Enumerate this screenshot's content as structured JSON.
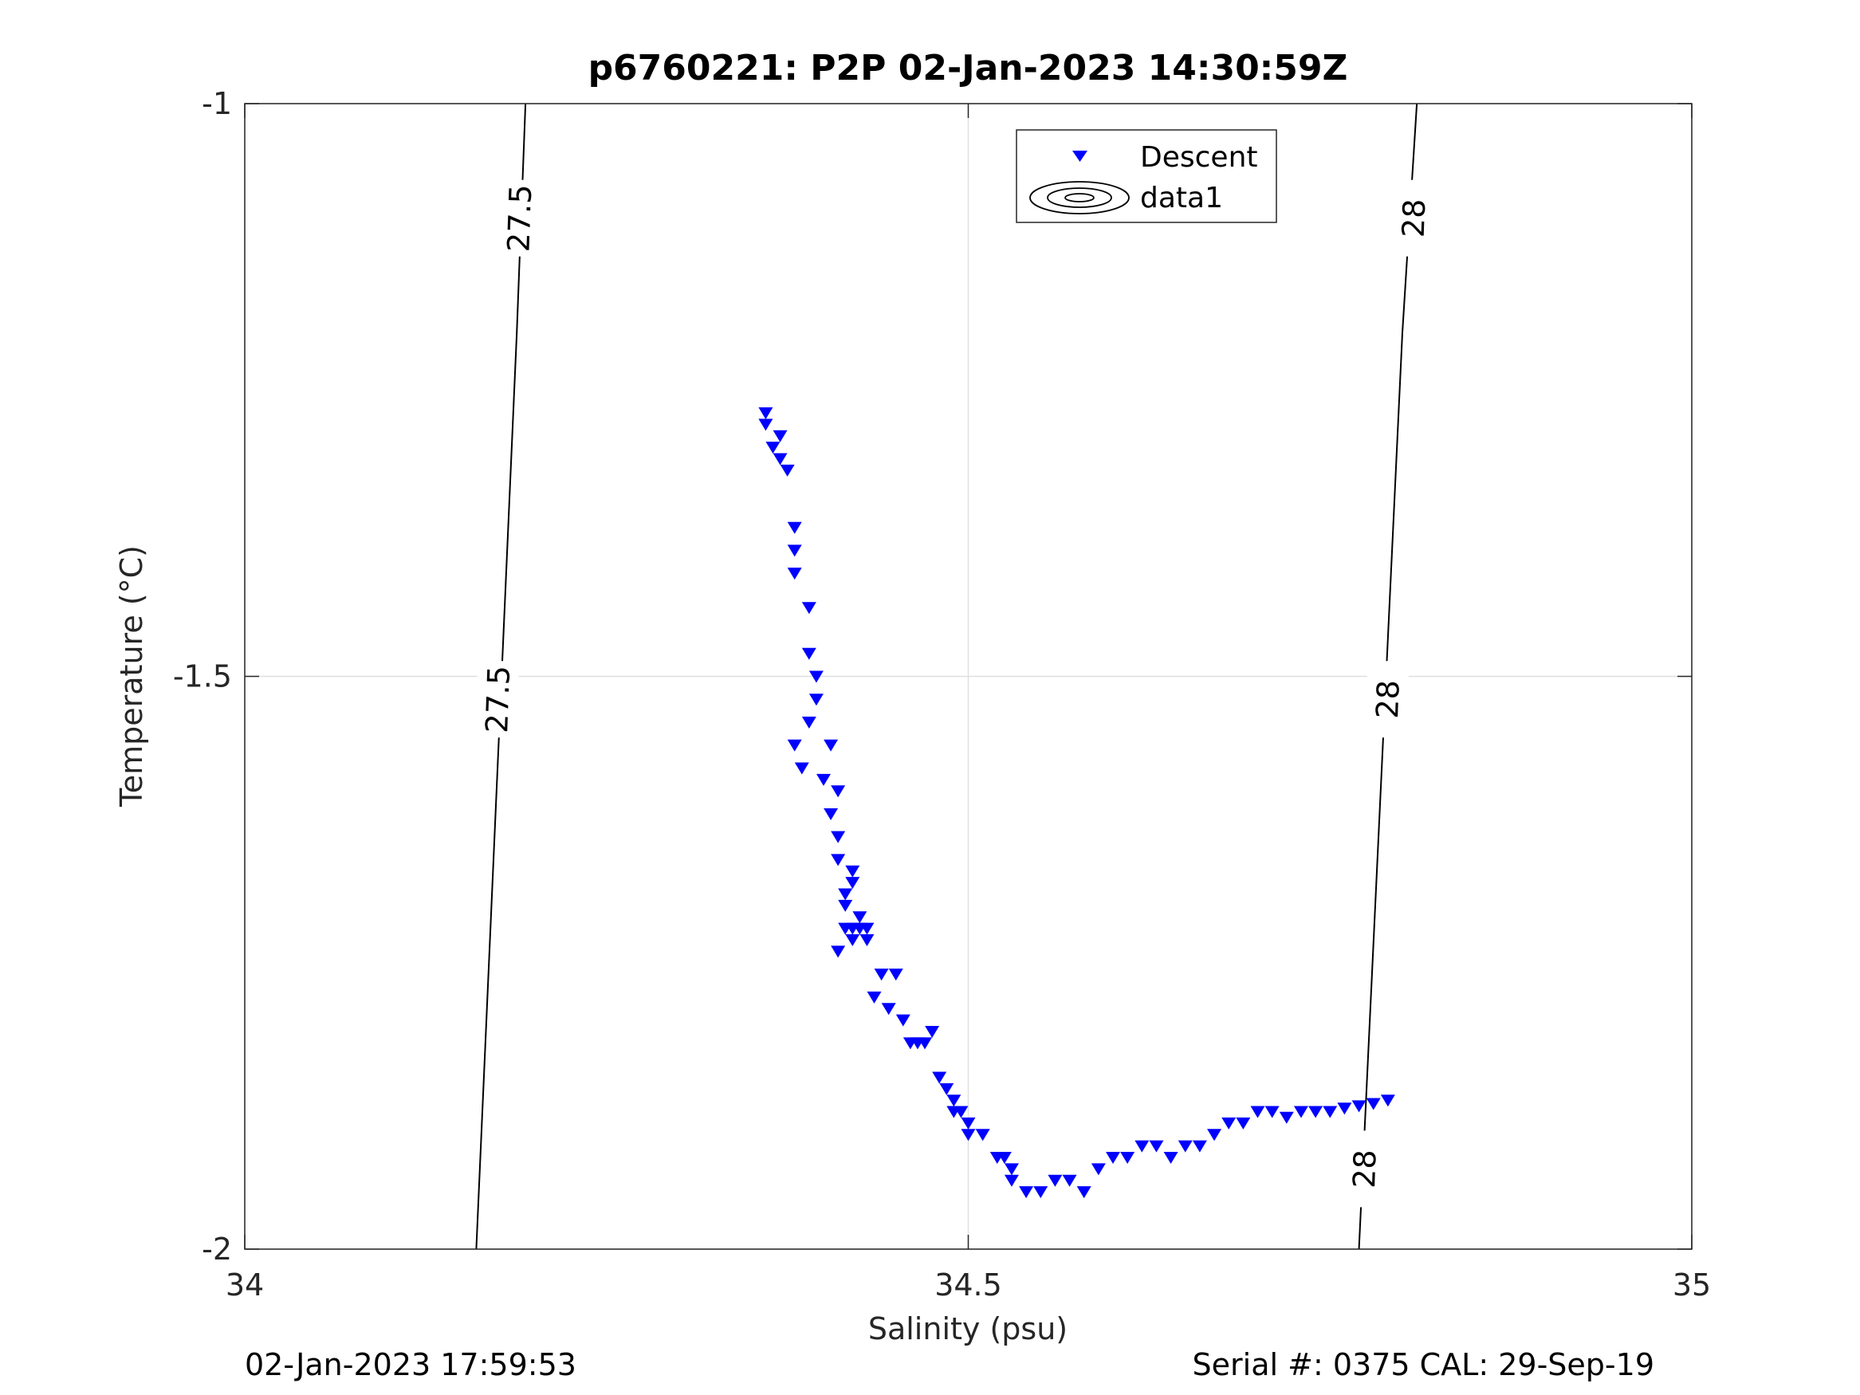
{
  "footer": {
    "left": "02-Jan-2023 17:59:53",
    "right": "Serial #: 0375  CAL: 29-Sep-19"
  },
  "chart_data": {
    "type": "scatter",
    "title": "p6760221: P2P 02-Jan-2023 14:30:59Z",
    "xlabel": "Salinity (psu)",
    "ylabel": "Temperature (°C)",
    "xlim": [
      34,
      35
    ],
    "ylim": [
      -2,
      -1
    ],
    "xticks": [
      34,
      34.5,
      35
    ],
    "xtick_labels": [
      "34",
      "34.5",
      "35"
    ],
    "yticks": [
      -1,
      -1.5,
      -2
    ],
    "ytick_labels": [
      "-1",
      "-1.5",
      "-2"
    ],
    "grid": true,
    "legend": {
      "location": "top",
      "entries": [
        "Descent",
        "data1"
      ]
    },
    "colors": {
      "descent": "#0000ff",
      "contour": "#000000",
      "grid": "#dfdfdf"
    },
    "series": [
      {
        "name": "Descent",
        "marker": "triangle-down",
        "x": [
          34.36,
          34.36,
          34.365,
          34.37,
          34.375,
          34.37,
          34.38,
          34.38,
          34.38,
          34.39,
          34.39,
          34.395,
          34.395,
          34.39,
          34.38,
          34.385,
          34.4,
          34.405,
          34.41,
          34.405,
          34.41,
          34.41,
          34.42,
          34.415,
          34.42,
          34.42,
          34.41,
          34.415,
          34.415,
          34.42,
          34.425,
          34.43,
          34.425,
          34.43,
          34.44,
          34.435,
          34.445,
          34.45,
          34.455,
          34.46,
          34.465,
          34.47,
          34.475,
          34.48,
          34.485,
          34.49,
          34.49,
          34.495,
          34.5,
          34.5,
          34.51,
          34.52,
          34.525,
          34.53,
          34.53,
          34.54,
          34.55,
          34.56,
          34.57,
          34.58,
          34.59,
          34.6,
          34.61,
          34.62,
          34.63,
          34.64,
          34.65,
          34.66,
          34.67,
          34.68,
          34.69,
          34.7,
          34.71,
          34.72,
          34.73,
          34.74,
          34.75,
          34.76,
          34.77,
          34.78,
          34.79
        ],
        "y": [
          -1.27,
          -1.28,
          -1.3,
          -1.31,
          -1.32,
          -1.29,
          -1.37,
          -1.39,
          -1.41,
          -1.44,
          -1.48,
          -1.5,
          -1.52,
          -1.54,
          -1.56,
          -1.58,
          -1.59,
          -1.56,
          -1.6,
          -1.62,
          -1.64,
          -1.66,
          -1.68,
          -1.7,
          -1.72,
          -1.73,
          -1.74,
          -1.72,
          -1.69,
          -1.67,
          -1.72,
          -1.73,
          -1.71,
          -1.72,
          -1.76,
          -1.78,
          -1.79,
          -1.76,
          -1.8,
          -1.82,
          -1.82,
          -1.82,
          -1.81,
          -1.85,
          -1.86,
          -1.87,
          -1.88,
          -1.88,
          -1.89,
          -1.9,
          -1.9,
          -1.92,
          -1.92,
          -1.93,
          -1.94,
          -1.95,
          -1.95,
          -1.94,
          -1.94,
          -1.95,
          -1.93,
          -1.92,
          -1.92,
          -1.91,
          -1.91,
          -1.92,
          -1.91,
          -1.91,
          -1.9,
          -1.89,
          -1.89,
          -1.88,
          -1.88,
          -1.885,
          -1.88,
          -1.88,
          -1.88,
          -1.877,
          -1.875,
          -1.873,
          -1.87
        ]
      }
    ],
    "contours": [
      {
        "level": "27.5",
        "x": [
          34.194,
          34.188,
          34.16
        ],
        "y": [
          -1,
          -1.2,
          -2
        ],
        "labels": [
          {
            "text": "27.5",
            "x": 34.19,
            "y": -1.1
          },
          {
            "text": "27.5",
            "x": 34.175,
            "y": -1.52
          }
        ]
      },
      {
        "level": "28",
        "x": [
          34.81,
          34.8,
          34.77
        ],
        "y": [
          -1,
          -1.2,
          -2
        ],
        "labels": [
          {
            "text": "28",
            "x": 34.808,
            "y": -1.1
          },
          {
            "text": "28",
            "x": 34.79,
            "y": -1.52
          },
          {
            "text": "28",
            "x": 34.774,
            "y": -1.93
          }
        ]
      }
    ]
  }
}
